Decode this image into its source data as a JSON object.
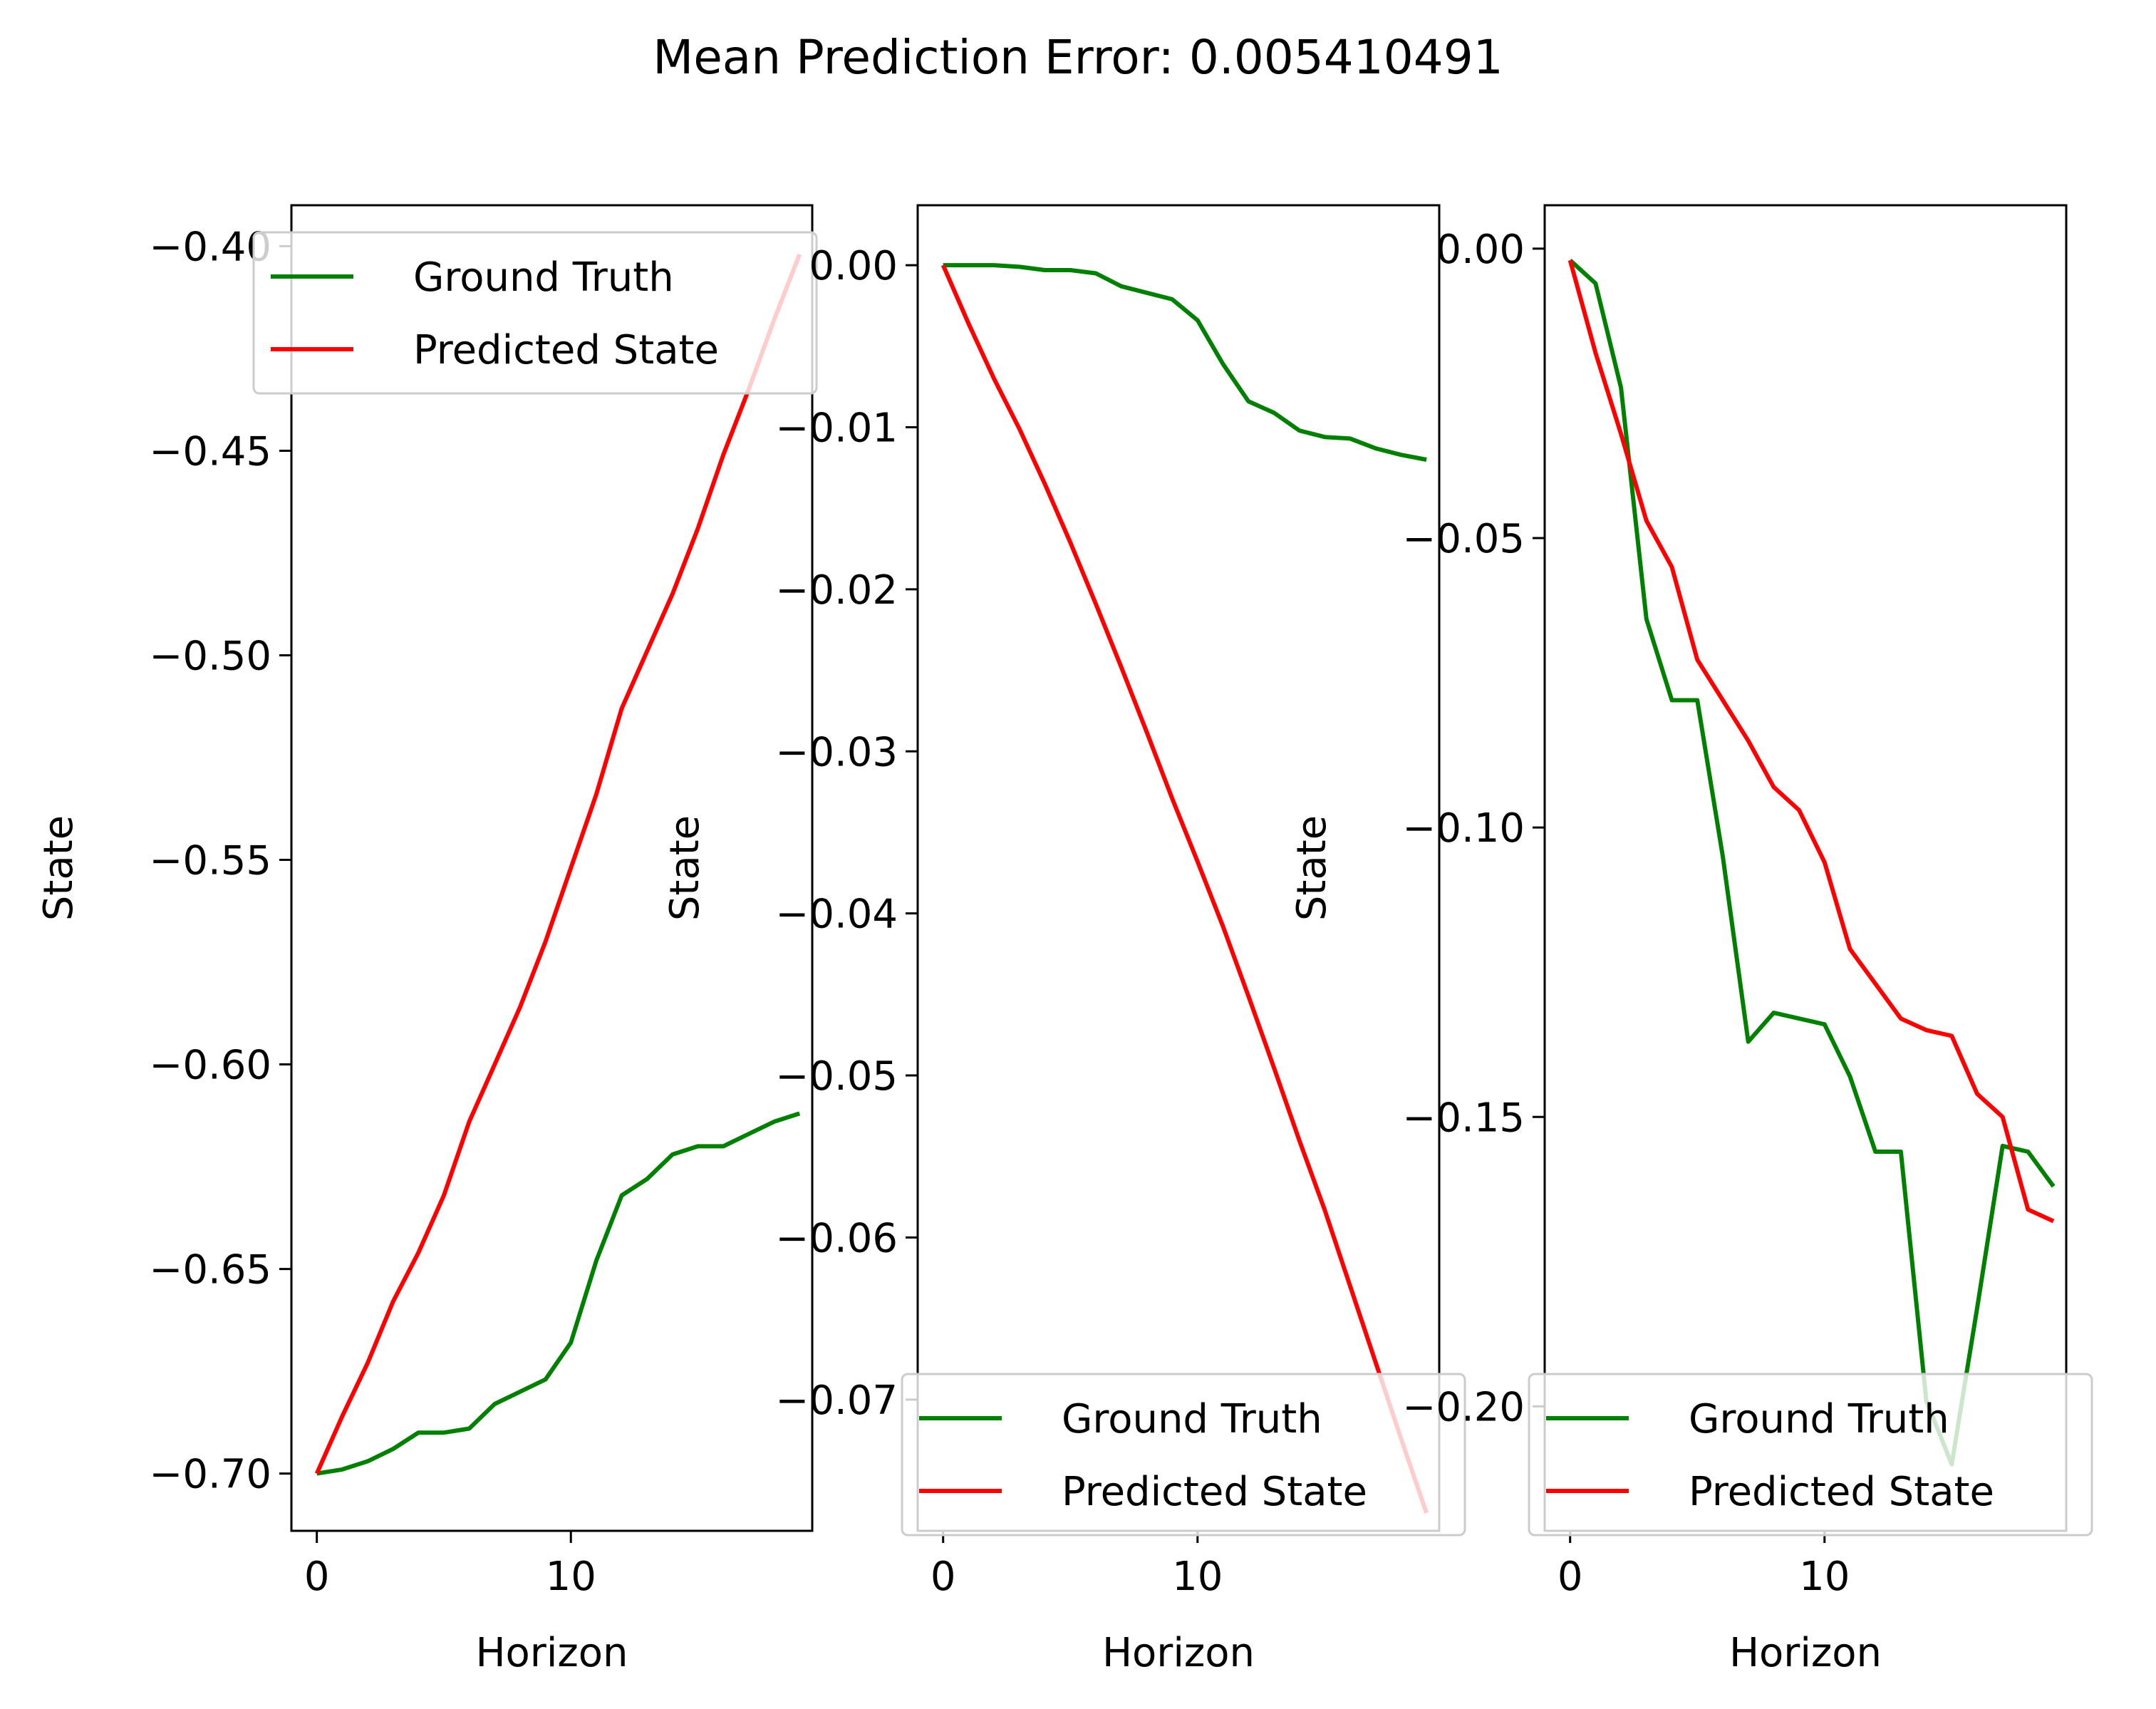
{
  "figure": {
    "suptitle": "Mean Prediction Error: 0.005410491"
  },
  "chart_data": [
    {
      "type": "line",
      "xlabel": "Horizon",
      "ylabel": "State",
      "xlim": [
        -1,
        19.5
      ],
      "ylim": [
        -0.714,
        -0.39
      ],
      "xticks": [
        0,
        10
      ],
      "xtick_labels": [
        "0",
        "10"
      ],
      "yticks": [
        -0.7,
        -0.65,
        -0.6,
        -0.55,
        -0.5,
        -0.45,
        -0.4
      ],
      "ytick_labels": [
        "−0.70",
        "−0.65",
        "−0.60",
        "−0.55",
        "−0.50",
        "−0.45",
        "−0.40"
      ],
      "legend": "top-right",
      "series": [
        {
          "name": "Ground Truth",
          "color": "#008000",
          "x": [
            0,
            1,
            2,
            3,
            4,
            5,
            6,
            7,
            8,
            9,
            10,
            11,
            12,
            13,
            14,
            15,
            16,
            17,
            18,
            19
          ],
          "values": [
            -0.7,
            -0.699,
            -0.697,
            -0.694,
            -0.69,
            -0.69,
            -0.689,
            -0.683,
            -0.68,
            -0.677,
            -0.668,
            -0.648,
            -0.632,
            -0.628,
            -0.622,
            -0.62,
            -0.62,
            -0.617,
            -0.614,
            -0.612
          ]
        },
        {
          "name": "Predicted State",
          "color": "#ff0000",
          "x": [
            0,
            1,
            2,
            3,
            4,
            5,
            6,
            7,
            8,
            9,
            10,
            11,
            12,
            13,
            14,
            15,
            16,
            17,
            18,
            19
          ],
          "values": [
            -0.7,
            -0.686,
            -0.673,
            -0.658,
            -0.646,
            -0.632,
            -0.614,
            -0.6,
            -0.586,
            -0.57,
            -0.552,
            -0.534,
            -0.513,
            -0.499,
            -0.485,
            -0.469,
            -0.451,
            -0.435,
            -0.418,
            -0.402
          ]
        }
      ]
    },
    {
      "type": "line",
      "xlabel": "Horizon",
      "ylabel": "State",
      "xlim": [
        -1,
        19.5
      ],
      "ylim": [
        -0.0781,
        0.0037
      ],
      "xticks": [
        0,
        10
      ],
      "xtick_labels": [
        "0",
        "10"
      ],
      "yticks": [
        0.0,
        -0.01,
        -0.02,
        -0.03,
        -0.04,
        -0.05,
        -0.06,
        -0.07
      ],
      "ytick_labels": [
        "0.00",
        "−0.01",
        "−0.02",
        "−0.03",
        "−0.04",
        "−0.05",
        "−0.06",
        "−0.07"
      ],
      "legend": "lower-right",
      "series": [
        {
          "name": "Ground Truth",
          "color": "#008000",
          "x": [
            0,
            1,
            2,
            3,
            4,
            5,
            6,
            7,
            8,
            9,
            10,
            11,
            12,
            13,
            14,
            15,
            16,
            17,
            18,
            19
          ],
          "values": [
            0.0,
            0.0,
            0.0,
            -0.0001,
            -0.0003,
            -0.0003,
            -0.0005,
            -0.0013,
            -0.0017,
            -0.0021,
            -0.0034,
            -0.0061,
            -0.0084,
            -0.0091,
            -0.0102,
            -0.0106,
            -0.0107,
            -0.0113,
            -0.0117,
            -0.012
          ]
        },
        {
          "name": "Predicted State",
          "color": "#ff0000",
          "x": [
            0,
            1,
            2,
            3,
            4,
            5,
            6,
            7,
            8,
            9,
            10,
            11,
            12,
            13,
            14,
            15,
            16,
            17,
            18,
            19
          ],
          "values": [
            0.0,
            -0.0036,
            -0.007,
            -0.0101,
            -0.0135,
            -0.0171,
            -0.0209,
            -0.0248,
            -0.0288,
            -0.0329,
            -0.0368,
            -0.0408,
            -0.0451,
            -0.0495,
            -0.054,
            -0.0583,
            -0.063,
            -0.0677,
            -0.0724,
            -0.077
          ]
        }
      ]
    },
    {
      "type": "line",
      "xlabel": "Horizon",
      "ylabel": "State",
      "xlim": [
        -1,
        19.5
      ],
      "ylim": [
        -0.2215,
        0.0075
      ],
      "xticks": [
        0,
        10
      ],
      "xtick_labels": [
        "0",
        "10"
      ],
      "yticks": [
        0.0,
        -0.05,
        -0.1,
        -0.15,
        -0.2
      ],
      "ytick_labels": [
        "0.00",
        "−0.05",
        "−0.10",
        "−0.15",
        "−0.20"
      ],
      "legend": "lower-right",
      "series": [
        {
          "name": "Ground Truth",
          "color": "#008000",
          "x": [
            0,
            1,
            2,
            3,
            4,
            5,
            6,
            7,
            8,
            9,
            10,
            11,
            12,
            13,
            14,
            15,
            16,
            17,
            18,
            19
          ],
          "values": [
            -0.002,
            -0.006,
            -0.024,
            -0.064,
            -0.078,
            -0.078,
            -0.105,
            -0.137,
            -0.132,
            -0.133,
            -0.134,
            -0.143,
            -0.156,
            -0.156,
            -0.199,
            -0.21,
            -0.183,
            -0.155,
            -0.156,
            -0.162
          ]
        },
        {
          "name": "Predicted State",
          "color": "#ff0000",
          "x": [
            0,
            1,
            2,
            3,
            4,
            5,
            6,
            7,
            8,
            9,
            10,
            11,
            12,
            13,
            14,
            15,
            16,
            17,
            18,
            19
          ],
          "values": [
            -0.002,
            -0.018,
            -0.032,
            -0.047,
            -0.055,
            -0.071,
            -0.078,
            -0.085,
            -0.093,
            -0.097,
            -0.106,
            -0.121,
            -0.127,
            -0.133,
            -0.135,
            -0.136,
            -0.146,
            -0.15,
            -0.166,
            -0.168
          ]
        }
      ]
    }
  ]
}
